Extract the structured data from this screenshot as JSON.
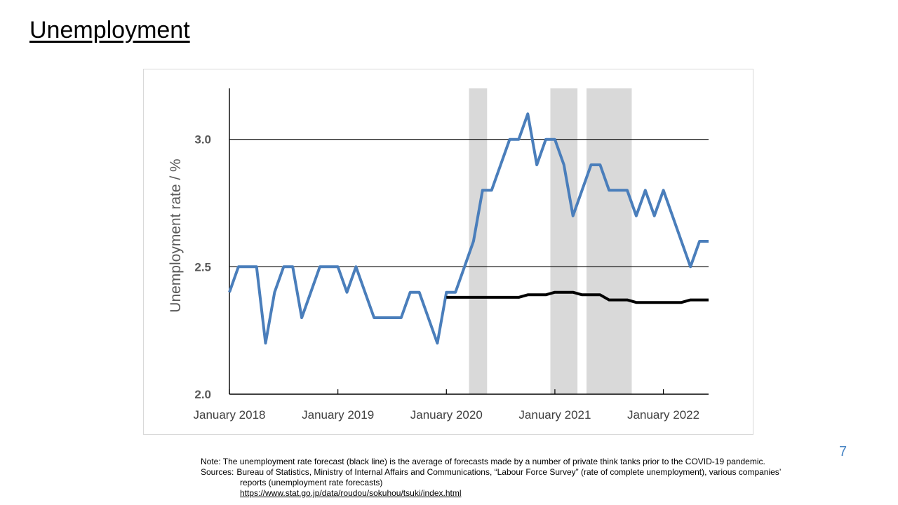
{
  "page": {
    "title": "Unemployment",
    "page_number": "7"
  },
  "notes": {
    "note": "Note: The unemployment rate forecast (black line) is the average  of forecasts made by a number of private think tanks prior to the COVID-19 pandemic.",
    "sources_label": "Sources:",
    "sources_text": "Bureau of Statistics, Ministry of Internal Affairs and Communications, “Labour Force Survey” (rate of complete unemployment), various companies’",
    "sources_text_2": "reports (unemployment rate forecasts)",
    "link": "https://www.stat.go.jp/data/roudou/sokuhou/tsuki/index.html"
  },
  "chart_data": {
    "type": "line",
    "title": "",
    "xlabel": "",
    "ylabel": "Unemployment rate / %",
    "ylim": [
      2.0,
      3.2
    ],
    "x_range": [
      0,
      53
    ],
    "y_ticks": [
      2.0,
      2.5,
      3.0
    ],
    "y_tick_labels": [
      "2.0",
      "2.5",
      "3.0"
    ],
    "gridlines_at": [
      2.5,
      3.0
    ],
    "x_tick_labels": [
      {
        "label": "January 2018",
        "index": 0
      },
      {
        "label": "January 2019",
        "index": 12
      },
      {
        "label": "January 2020",
        "index": 24
      },
      {
        "label": "January 2021",
        "index": 36
      },
      {
        "label": "January 2022",
        "index": 48
      }
    ],
    "shaded_periods": [
      {
        "start": 26.5,
        "end": 28.5
      },
      {
        "start": 35.5,
        "end": 38.5
      },
      {
        "start": 39.5,
        "end": 44.5
      }
    ],
    "series": [
      {
        "color": "#4a7ebb",
        "start_index": 0,
        "values": [
          2.4,
          2.5,
          2.5,
          2.5,
          2.2,
          2.4,
          2.5,
          2.5,
          2.3,
          2.4,
          2.5,
          2.5,
          2.5,
          2.4,
          2.5,
          2.4,
          2.3,
          2.3,
          2.3,
          2.3,
          2.4,
          2.4,
          2.3,
          2.2,
          2.4,
          2.4,
          2.5,
          2.6,
          2.8,
          2.8,
          2.9,
          3.0,
          3.0,
          3.1,
          2.9,
          3.0,
          3.0,
          2.9,
          2.7,
          2.8,
          2.9,
          2.9,
          2.8,
          2.8,
          2.8,
          2.7,
          2.8,
          2.7,
          2.8,
          2.7,
          2.6,
          2.5,
          2.6,
          2.6
        ]
      },
      {
        "color": "#000000",
        "start_index": 24,
        "values": [
          2.38,
          2.38,
          2.38,
          2.38,
          2.38,
          2.38,
          2.38,
          2.38,
          2.38,
          2.39,
          2.39,
          2.39,
          2.4,
          2.4,
          2.4,
          2.39,
          2.39,
          2.39,
          2.37,
          2.37,
          2.37,
          2.36,
          2.36,
          2.36,
          2.36,
          2.36,
          2.36,
          2.37,
          2.37,
          2.37
        ]
      }
    ]
  }
}
